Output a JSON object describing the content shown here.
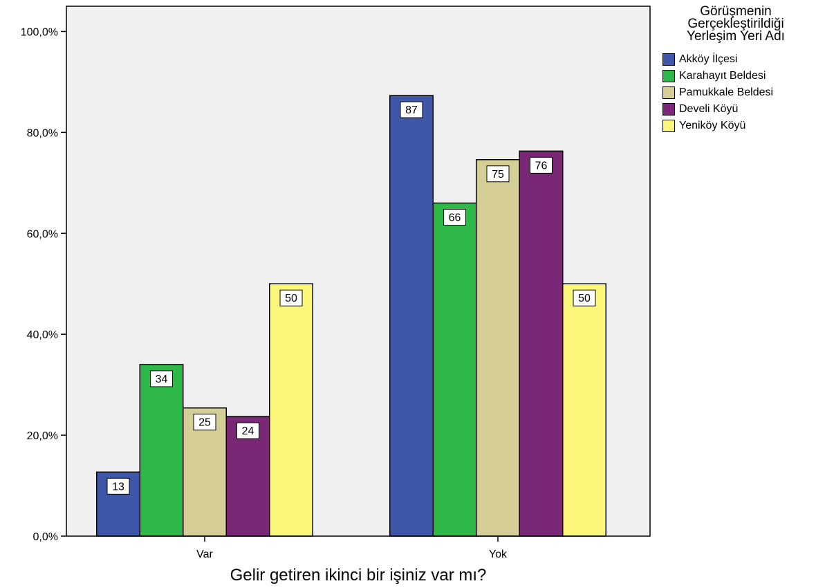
{
  "chart_data": {
    "type": "bar",
    "categories": [
      "Var",
      "Yok"
    ],
    "series": [
      {
        "name": "Akköy İlçesi",
        "values": [
          12.7,
          87.3
        ],
        "labels": [
          "13",
          "87"
        ],
        "color": "#3f57a8"
      },
      {
        "name": "Karahayıt Beldesi",
        "values": [
          34.0,
          66.0
        ],
        "labels": [
          "34",
          "66"
        ],
        "color": "#2fb84a"
      },
      {
        "name": "Pamukkale Beldesi",
        "values": [
          25.4,
          74.6
        ],
        "labels": [
          "25",
          "75"
        ],
        "color": "#d5cf97"
      },
      {
        "name": "Develi Köyü",
        "values": [
          23.7,
          76.3
        ],
        "labels": [
          "24",
          "76"
        ],
        "color": "#7b2778"
      },
      {
        "name": "Yeniköy Köyü",
        "values": [
          50.0,
          50.0
        ],
        "labels": [
          "50",
          "50"
        ],
        "color": "#faf77a"
      }
    ],
    "yticks": [
      "0,0%",
      "20,0%",
      "40,0%",
      "60,0%",
      "80,0%",
      "100,0%"
    ],
    "ylim": [
      0,
      105
    ],
    "xlabel": "Gelir getiren ikinci bir işiniz var mı?",
    "ylabel": "",
    "legend": {
      "title_lines": [
        "Görüşmenin",
        "Gerçekleştirildiği",
        "Yerleşim Yeri Adı"
      ],
      "placement": "right"
    },
    "plot_background": "#f0f0f0",
    "grid": false
  }
}
